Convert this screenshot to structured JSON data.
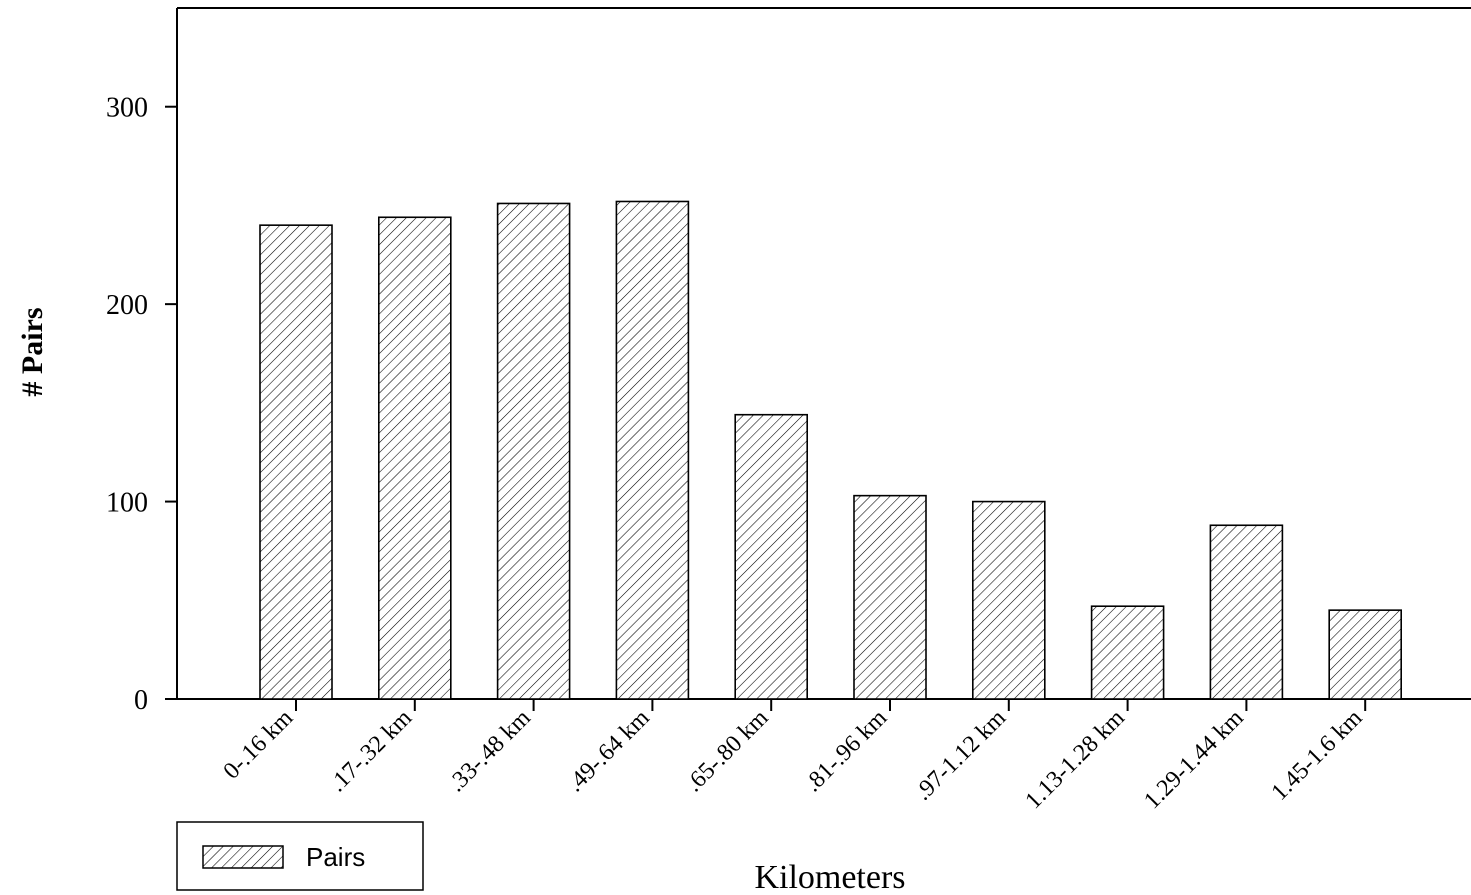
{
  "chart_data": {
    "type": "bar",
    "categories": [
      "0-.16 km",
      ".17-.32 km",
      ".33-.48 km",
      ".49-.64 km",
      ".65-.80 km",
      ".81-.96 km",
      ".97-1.12 km",
      "1.13-1.28 km",
      "1.29-1.44 km",
      "1.45-1.6 km"
    ],
    "series": [
      {
        "name": "Pairs",
        "values": [
          240,
          244,
          251,
          252,
          144,
          103,
          100,
          47,
          88,
          45
        ]
      }
    ],
    "xlabel": "Kilometers",
    "ylabel": "# Pairs",
    "ylim": [
      0,
      350
    ],
    "yticks": [
      "0",
      "100",
      "200",
      "300"
    ],
    "bar_pattern": "diagonal-hatch",
    "grid": false,
    "legend": {
      "position": "bottom-left",
      "label": "Pairs"
    }
  }
}
